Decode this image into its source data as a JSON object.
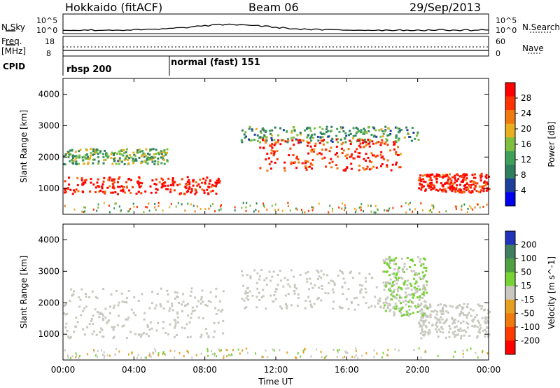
{
  "header": {
    "station": "Hokkaido (fitACF)",
    "beam": "Beam 06",
    "date": "29/Sep/2013"
  },
  "top_panels": {
    "nsky_label": "N.Sky",
    "nsky_ticks_left": [
      "10^5",
      "10^0"
    ],
    "nsky_ticks_right": [
      "10^5",
      "10^0"
    ],
    "nsearch_label": "N.Search",
    "freq_label": "Freq.",
    "freq_unit": "[MHz]",
    "freq_ticks": [
      "18",
      "8"
    ],
    "nave_ticks": [
      "60",
      "0"
    ],
    "nave_label": "Nave",
    "cpid_label": "CPID",
    "cpid_modes": [
      {
        "label": "rbsp 200",
        "start_hour": 0
      },
      {
        "label": "normal (fast) 151",
        "start_hour": 6
      }
    ]
  },
  "colors": {
    "power_scale": [
      "#0000ee",
      "#1f3f9c",
      "#2f7f5f",
      "#3fa05a",
      "#7fbf3f",
      "#e8b020",
      "#f07a10",
      "#ff3300",
      "#ff0000"
    ],
    "velocity_scale": [
      "#2233bb",
      "#3f7f5f",
      "#4fa040",
      "#77d233",
      "#c8c8c0",
      "#e6a020",
      "#f07a10",
      "#ff3b00",
      "#ff0000"
    ]
  },
  "chart_data": [
    {
      "type": "heatmap",
      "name": "power",
      "xlabel": "",
      "ylabel": "Slant Range [km]",
      "xlim_hours": [
        0,
        24
      ],
      "ylim_km": [
        180,
        4500
      ],
      "y_ticks": [
        "1000",
        "2000",
        "3000",
        "4000"
      ],
      "colorbar": {
        "label": "Power [dB]",
        "ticks": [
          "4",
          "8",
          "12",
          "16",
          "20",
          "24",
          "28"
        ],
        "range": [
          0,
          32
        ]
      },
      "features": [
        {
          "hours": [
            0,
            8.8
          ],
          "range_km": [
            850,
            1400
          ],
          "value_db": 30
        },
        {
          "hours": [
            0,
            6
          ],
          "range_km": [
            1800,
            2300
          ],
          "value_db": 14
        },
        {
          "hours": [
            10,
            20
          ],
          "range_km": [
            2500,
            3000
          ],
          "value_db": 12
        },
        {
          "hours": [
            11,
            19
          ],
          "range_km": [
            1600,
            2600
          ],
          "value_db": 28
        },
        {
          "hours": [
            20,
            24
          ],
          "range_km": [
            900,
            1500
          ],
          "value_db": 30
        }
      ]
    },
    {
      "type": "heatmap",
      "name": "velocity",
      "xlabel": "Time UT",
      "ylabel": "Slant Range [km]",
      "x_ticks": [
        "00:00",
        "04:00",
        "08:00",
        "12:00",
        "16:00",
        "20:00",
        "00:00"
      ],
      "xlim_hours": [
        0,
        24
      ],
      "ylim_km": [
        180,
        4500
      ],
      "y_ticks": [
        "1000",
        "2000",
        "3000",
        "4000"
      ],
      "colorbar": {
        "label": "Velocity [m s^-1]",
        "ticks": [
          "200",
          "100",
          "50",
          "15",
          "-15",
          "-50",
          "-100",
          "-200"
        ],
        "range": [
          -250,
          250
        ]
      },
      "features": [
        {
          "hours": [
            0,
            9
          ],
          "range_km": [
            900,
            2500
          ],
          "value_ms": 0
        },
        {
          "hours": [
            10,
            20
          ],
          "range_km": [
            1800,
            3100
          ],
          "value_ms": 0
        },
        {
          "hours": [
            20,
            24
          ],
          "range_km": [
            900,
            2000
          ],
          "value_ms": 0
        },
        {
          "hours": [
            18,
            20.5
          ],
          "range_km": [
            1600,
            3500
          ],
          "value_ms": 30
        }
      ]
    }
  ]
}
